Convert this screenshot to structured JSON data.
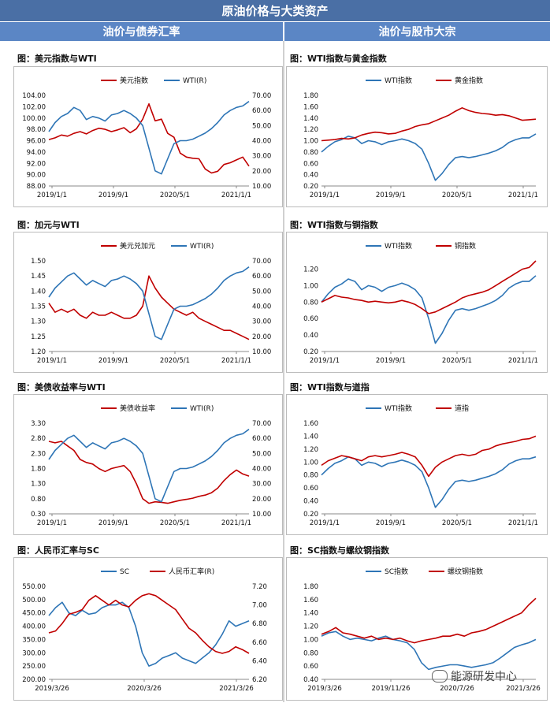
{
  "header": {
    "title": "原油价格与大类资产"
  },
  "sections": {
    "left": "油价与债券汇率",
    "right": "油价与股市大宗"
  },
  "watermark": "能源研发中心",
  "colors": {
    "red": "#c00000",
    "blue": "#2e75b6"
  },
  "chart_data": [
    {
      "id": "c1",
      "type": "line",
      "title": "图：美元指数与WTI",
      "x_ticks": [
        "2019/1/1",
        "2019/9/1",
        "2020/5/1",
        "2021/1/1"
      ],
      "left_axis": {
        "ticks": [
          "104.00",
          "102.00",
          "100.00",
          "98.00",
          "96.00",
          "94.00",
          "92.00",
          "90.00",
          "88.00"
        ],
        "min": 88,
        "max": 104
      },
      "right_axis": {
        "ticks": [
          "70.00",
          "60.00",
          "50.00",
          "40.00",
          "30.00",
          "20.00",
          "10.00"
        ],
        "min": 10,
        "max": 70
      },
      "series": [
        {
          "name": "美元指数",
          "color": "red",
          "axis": "left",
          "values": [
            96.2,
            96.5,
            97.0,
            96.8,
            97.3,
            97.6,
            97.2,
            97.8,
            98.2,
            98.0,
            97.6,
            97.9,
            98.3,
            97.4,
            98.1,
            99.8,
            102.5,
            99.5,
            99.8,
            97.3,
            96.6,
            93.8,
            93.1,
            92.9,
            92.8,
            91.0,
            90.3,
            90.6,
            91.8,
            92.1,
            92.6,
            93.1,
            91.5
          ]
        },
        {
          "name": "WTI(R)",
          "color": "blue",
          "axis": "right",
          "values": [
            46,
            52,
            56,
            58,
            62,
            60,
            54,
            56,
            55,
            53,
            57,
            58,
            60,
            58,
            55,
            50,
            35,
            20,
            18,
            28,
            38,
            40,
            40,
            41,
            43,
            45,
            48,
            52,
            57,
            60,
            62,
            63,
            66
          ]
        }
      ]
    },
    {
      "id": "c2",
      "type": "line",
      "title": "图：WTI指数与黄金指数",
      "x_ticks": [
        "2019/1/1",
        "2019/9/1",
        "2020/5/1",
        "2021/1/1"
      ],
      "left_axis": {
        "ticks": [
          "1.80",
          "1.60",
          "1.40",
          "1.20",
          "1.00",
          "0.80",
          "0.60",
          "0.40",
          "0.20"
        ],
        "min": 0.2,
        "max": 1.8
      },
      "series": [
        {
          "name": "WTI指数",
          "color": "blue",
          "axis": "left",
          "values": [
            0.8,
            0.9,
            0.98,
            1.02,
            1.08,
            1.05,
            0.95,
            1.0,
            0.98,
            0.93,
            0.98,
            1.0,
            1.03,
            1.0,
            0.95,
            0.85,
            0.6,
            0.3,
            0.42,
            0.58,
            0.7,
            0.72,
            0.7,
            0.72,
            0.75,
            0.78,
            0.82,
            0.88,
            0.97,
            1.02,
            1.05,
            1.05,
            1.12
          ]
        },
        {
          "name": "黄金指数",
          "color": "red",
          "axis": "left",
          "values": [
            1.0,
            1.01,
            1.02,
            1.04,
            1.03,
            1.05,
            1.1,
            1.13,
            1.15,
            1.14,
            1.12,
            1.13,
            1.17,
            1.2,
            1.25,
            1.28,
            1.3,
            1.35,
            1.4,
            1.45,
            1.52,
            1.58,
            1.53,
            1.5,
            1.48,
            1.47,
            1.45,
            1.46,
            1.44,
            1.4,
            1.36,
            1.37,
            1.38
          ]
        }
      ]
    },
    {
      "id": "c3",
      "type": "line",
      "title": "图：加元与WTI",
      "x_ticks": [
        "2019/1/1",
        "2019/9/1",
        "2020/5/1",
        "2021/1/1"
      ],
      "left_axis": {
        "ticks": [
          "1.50",
          "1.45",
          "1.40",
          "1.35",
          "1.30",
          "1.25",
          "1.20"
        ],
        "min": 1.2,
        "max": 1.5
      },
      "right_axis": {
        "ticks": [
          "70.00",
          "60.00",
          "50.00",
          "40.00",
          "30.00",
          "20.00",
          "10.00"
        ],
        "min": 10,
        "max": 70
      },
      "series": [
        {
          "name": "美元兑加元",
          "color": "red",
          "axis": "left",
          "values": [
            1.36,
            1.33,
            1.34,
            1.33,
            1.34,
            1.32,
            1.31,
            1.33,
            1.32,
            1.32,
            1.33,
            1.32,
            1.31,
            1.31,
            1.32,
            1.35,
            1.45,
            1.41,
            1.38,
            1.36,
            1.34,
            1.33,
            1.32,
            1.33,
            1.31,
            1.3,
            1.29,
            1.28,
            1.27,
            1.27,
            1.26,
            1.25,
            1.24
          ]
        },
        {
          "name": "WTI(R)",
          "color": "blue",
          "axis": "right",
          "values": [
            46,
            52,
            56,
            60,
            62,
            58,
            54,
            57,
            55,
            53,
            57,
            58,
            60,
            58,
            55,
            50,
            35,
            20,
            18,
            28,
            38,
            40,
            40,
            41,
            43,
            45,
            48,
            52,
            57,
            60,
            62,
            63,
            66
          ]
        }
      ]
    },
    {
      "id": "c4",
      "type": "line",
      "title": "图：WTI指数与铜指数",
      "x_ticks": [
        "2019/1/1",
        "2019/9/1",
        "2020/5/1",
        "2021/1/1"
      ],
      "left_axis": {
        "ticks": [
          "1.20",
          "1.00",
          "0.80",
          "0.60",
          "0.40",
          "0.20"
        ],
        "min": 0.2,
        "max": 1.3
      },
      "series": [
        {
          "name": "WTI指数",
          "color": "blue",
          "axis": "left",
          "values": [
            0.8,
            0.9,
            0.98,
            1.02,
            1.08,
            1.05,
            0.95,
            1.0,
            0.98,
            0.93,
            0.98,
            1.0,
            1.03,
            1.0,
            0.95,
            0.85,
            0.6,
            0.3,
            0.42,
            0.58,
            0.7,
            0.72,
            0.7,
            0.72,
            0.75,
            0.78,
            0.82,
            0.88,
            0.97,
            1.02,
            1.05,
            1.05,
            1.12
          ]
        },
        {
          "name": "铜指数",
          "color": "red",
          "axis": "left",
          "values": [
            0.8,
            0.84,
            0.88,
            0.86,
            0.85,
            0.83,
            0.82,
            0.8,
            0.81,
            0.8,
            0.79,
            0.8,
            0.82,
            0.8,
            0.77,
            0.72,
            0.66,
            0.68,
            0.72,
            0.76,
            0.8,
            0.85,
            0.88,
            0.9,
            0.92,
            0.95,
            1.0,
            1.05,
            1.1,
            1.15,
            1.2,
            1.22,
            1.3
          ]
        }
      ]
    },
    {
      "id": "c5",
      "type": "line",
      "title": "图：美债收益率与WTI",
      "x_ticks": [
        "2019/1/1",
        "2019/9/1",
        "2020/5/1",
        "2021/1/1"
      ],
      "left_axis": {
        "ticks": [
          "3.30",
          "2.80",
          "2.30",
          "1.80",
          "1.30",
          "0.80",
          "0.30"
        ],
        "min": 0.3,
        "max": 3.3
      },
      "right_axis": {
        "ticks": [
          "70.00",
          "60.00",
          "50.00",
          "40.00",
          "30.00",
          "20.00",
          "10.00"
        ],
        "min": 10,
        "max": 70
      },
      "series": [
        {
          "name": "美债收益率",
          "color": "red",
          "axis": "left",
          "values": [
            2.7,
            2.65,
            2.7,
            2.55,
            2.4,
            2.1,
            2.0,
            1.95,
            1.8,
            1.7,
            1.8,
            1.85,
            1.9,
            1.7,
            1.3,
            0.8,
            0.65,
            0.7,
            0.68,
            0.65,
            0.7,
            0.75,
            0.78,
            0.82,
            0.88,
            0.92,
            1.0,
            1.15,
            1.4,
            1.6,
            1.75,
            1.62,
            1.55
          ]
        },
        {
          "name": "WTI(R)",
          "color": "blue",
          "axis": "right",
          "values": [
            46,
            52,
            56,
            60,
            62,
            58,
            54,
            57,
            55,
            53,
            57,
            58,
            60,
            58,
            55,
            50,
            35,
            20,
            18,
            28,
            38,
            40,
            40,
            41,
            43,
            45,
            48,
            52,
            57,
            60,
            62,
            63,
            66
          ]
        }
      ]
    },
    {
      "id": "c6",
      "type": "line",
      "title": "图：WTI指数与道指",
      "x_ticks": [
        "2019/1/1",
        "2019/9/1",
        "2020/5/1",
        "2021/1/1"
      ],
      "left_axis": {
        "ticks": [
          "1.60",
          "1.40",
          "1.20",
          "1.00",
          "0.80",
          "0.60",
          "0.40",
          "0.20"
        ],
        "min": 0.2,
        "max": 1.6
      },
      "series": [
        {
          "name": "WTI指数",
          "color": "blue",
          "axis": "left",
          "values": [
            0.8,
            0.9,
            0.98,
            1.02,
            1.08,
            1.05,
            0.95,
            1.0,
            0.98,
            0.93,
            0.98,
            1.0,
            1.03,
            1.0,
            0.95,
            0.85,
            0.6,
            0.3,
            0.42,
            0.58,
            0.7,
            0.72,
            0.7,
            0.72,
            0.75,
            0.78,
            0.82,
            0.88,
            0.97,
            1.02,
            1.05,
            1.05,
            1.08
          ]
        },
        {
          "name": "道指",
          "color": "red",
          "axis": "left",
          "values": [
            0.95,
            1.02,
            1.06,
            1.1,
            1.08,
            1.05,
            1.02,
            1.08,
            1.1,
            1.08,
            1.1,
            1.12,
            1.15,
            1.12,
            1.08,
            0.95,
            0.78,
            0.92,
            1.0,
            1.05,
            1.1,
            1.12,
            1.1,
            1.12,
            1.18,
            1.2,
            1.25,
            1.28,
            1.3,
            1.32,
            1.35,
            1.36,
            1.4
          ]
        }
      ]
    },
    {
      "id": "c7",
      "type": "line",
      "title": "图：人民币汇率与SC",
      "x_ticks": [
        "2019/3/26",
        "2020/3/26",
        "2021/3/26"
      ],
      "left_axis": {
        "ticks": [
          "550.00",
          "500.00",
          "450.00",
          "400.00",
          "350.00",
          "300.00",
          "250.00",
          "200.00"
        ],
        "min": 200,
        "max": 550
      },
      "right_axis": {
        "ticks": [
          "7.20",
          "7.00",
          "6.80",
          "6.60",
          "6.40",
          "6.20"
        ],
        "min": 6.2,
        "max": 7.2
      },
      "series": [
        {
          "name": "SC",
          "color": "blue",
          "axis": "left",
          "values": [
            440,
            470,
            490,
            450,
            440,
            460,
            445,
            450,
            470,
            480,
            480,
            490,
            470,
            400,
            300,
            250,
            260,
            280,
            290,
            300,
            280,
            270,
            260,
            280,
            300,
            330,
            370,
            420,
            400,
            410,
            420
          ]
        },
        {
          "name": "人民币汇率(R)",
          "color": "red",
          "axis": "right",
          "values": [
            6.7,
            6.72,
            6.8,
            6.9,
            6.92,
            6.95,
            7.05,
            7.1,
            7.05,
            7.0,
            7.05,
            7.0,
            6.98,
            7.05,
            7.1,
            7.12,
            7.1,
            7.05,
            7.0,
            6.95,
            6.85,
            6.75,
            6.7,
            6.62,
            6.55,
            6.5,
            6.48,
            6.5,
            6.55,
            6.52,
            6.48
          ]
        }
      ]
    },
    {
      "id": "c8",
      "type": "line",
      "title": "图：SC指数与螺纹钢指数",
      "x_ticks": [
        "2019/3/26",
        "2019/11/26",
        "2020/7/26",
        "2021/3/26"
      ],
      "left_axis": {
        "ticks": [
          "1.80",
          "1.60",
          "1.40",
          "1.20",
          "1.00",
          "0.80",
          "0.60",
          "0.40"
        ],
        "min": 0.4,
        "max": 1.8
      },
      "series": [
        {
          "name": "SC指数",
          "color": "blue",
          "axis": "left",
          "values": [
            1.05,
            1.1,
            1.12,
            1.05,
            1.0,
            1.02,
            1.0,
            0.98,
            1.02,
            1.05,
            1.0,
            0.98,
            0.95,
            0.85,
            0.65,
            0.55,
            0.58,
            0.6,
            0.62,
            0.62,
            0.6,
            0.58,
            0.6,
            0.62,
            0.65,
            0.72,
            0.8,
            0.88,
            0.92,
            0.95,
            1.0
          ]
        },
        {
          "name": "螺纹钢指数",
          "color": "red",
          "axis": "left",
          "values": [
            1.08,
            1.12,
            1.18,
            1.1,
            1.08,
            1.05,
            1.02,
            1.05,
            1.0,
            1.02,
            1.0,
            1.02,
            0.98,
            0.95,
            0.98,
            1.0,
            1.02,
            1.05,
            1.05,
            1.08,
            1.05,
            1.1,
            1.12,
            1.15,
            1.2,
            1.25,
            1.3,
            1.35,
            1.4,
            1.52,
            1.62
          ]
        }
      ]
    }
  ]
}
